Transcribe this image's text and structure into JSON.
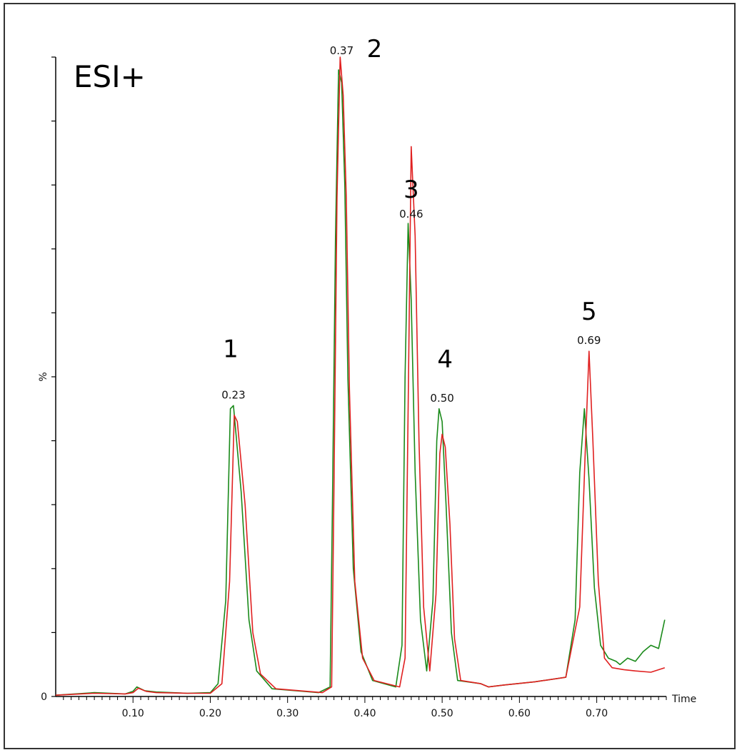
{
  "chart_data": {
    "type": "line",
    "annotation": "ESI+",
    "xlabel": "Time",
    "ylabel": "%",
    "xlim": [
      0.0,
      0.79
    ],
    "ylim": [
      0,
      100
    ],
    "y_ticks": [
      {
        "value": 0,
        "label": "0"
      }
    ],
    "x_ticks": [
      {
        "value": 0.1,
        "label": "0.10"
      },
      {
        "value": 0.2,
        "label": "0.20"
      },
      {
        "value": 0.3,
        "label": "0.30"
      },
      {
        "value": 0.4,
        "label": "0.40"
      },
      {
        "value": 0.5,
        "label": "0.50"
      },
      {
        "value": 0.6,
        "label": "0.60"
      },
      {
        "value": 0.7,
        "label": "0.70"
      }
    ],
    "series": [
      {
        "color": "#1a8a1a",
        "x": [
          0.0,
          0.05,
          0.09,
          0.1,
          0.105,
          0.115,
          0.13,
          0.17,
          0.2,
          0.21,
          0.22,
          0.226,
          0.23,
          0.24,
          0.25,
          0.26,
          0.28,
          0.34,
          0.355,
          0.358,
          0.362,
          0.366,
          0.37,
          0.374,
          0.378,
          0.385,
          0.395,
          0.41,
          0.44,
          0.448,
          0.452,
          0.456,
          0.46,
          0.465,
          0.472,
          0.48,
          0.488,
          0.493,
          0.496,
          0.5,
          0.505,
          0.512,
          0.52,
          0.55,
          0.56,
          0.58,
          0.62,
          0.66,
          0.672,
          0.678,
          0.684,
          0.69,
          0.697,
          0.705,
          0.715,
          0.725,
          0.73,
          0.74,
          0.75,
          0.76,
          0.77,
          0.78,
          0.788
        ],
        "y": [
          0.2,
          0.6,
          0.4,
          0.8,
          1.5,
          0.9,
          0.7,
          0.5,
          0.6,
          2,
          15,
          45,
          45.5,
          32,
          12,
          4,
          1.2,
          0.6,
          1.5,
          30,
          72,
          98,
          96,
          80,
          50,
          20,
          7,
          2.5,
          1.5,
          8,
          50,
          74,
          62,
          35,
          12,
          4,
          15,
          40,
          45,
          43,
          30,
          10,
          2.5,
          2.0,
          1.5,
          1.8,
          2.3,
          3.0,
          12,
          35,
          45,
          34,
          17,
          8,
          6,
          5.5,
          5,
          6,
          5.5,
          7,
          8,
          7.5,
          12
        ]
      },
      {
        "color": "#e02020",
        "x": [
          0.0,
          0.05,
          0.09,
          0.1,
          0.107,
          0.117,
          0.13,
          0.17,
          0.2,
          0.215,
          0.225,
          0.231,
          0.235,
          0.245,
          0.255,
          0.265,
          0.285,
          0.345,
          0.357,
          0.36,
          0.364,
          0.368,
          0.372,
          0.376,
          0.38,
          0.387,
          0.397,
          0.412,
          0.445,
          0.452,
          0.456,
          0.46,
          0.465,
          0.47,
          0.476,
          0.484,
          0.492,
          0.497,
          0.5,
          0.504,
          0.51,
          0.516,
          0.524,
          0.55,
          0.56,
          0.58,
          0.62,
          0.66,
          0.678,
          0.685,
          0.69,
          0.695,
          0.702,
          0.71,
          0.72,
          0.735,
          0.75,
          0.77,
          0.788
        ],
        "y": [
          0.2,
          0.5,
          0.4,
          0.6,
          1.3,
          0.8,
          0.6,
          0.5,
          0.5,
          2,
          18,
          44,
          43,
          30,
          10,
          3.5,
          1.2,
          0.6,
          1.5,
          32,
          78,
          100,
          94,
          78,
          48,
          18,
          6,
          2.5,
          1.5,
          6,
          45,
          86,
          72,
          40,
          14,
          4,
          16,
          38,
          41,
          39,
          27,
          9,
          2.5,
          2.0,
          1.5,
          1.8,
          2.3,
          3.0,
          14,
          38,
          54,
          40,
          18,
          6,
          4.5,
          4.2,
          4.0,
          3.8,
          4.5
        ]
      }
    ],
    "peak_labels": [
      {
        "x": 0.23,
        "y": 45.5,
        "rt": "0.23",
        "number": "1"
      },
      {
        "x": 0.37,
        "y": 100,
        "rt": "0.37",
        "number": "2"
      },
      {
        "x": 0.46,
        "y": 86,
        "rt": "0.46",
        "number": "3"
      },
      {
        "x": 0.5,
        "y": 45,
        "rt": "0.50",
        "number": "4"
      },
      {
        "x": 0.69,
        "y": 54,
        "rt": "0.69",
        "number": "5"
      }
    ]
  }
}
